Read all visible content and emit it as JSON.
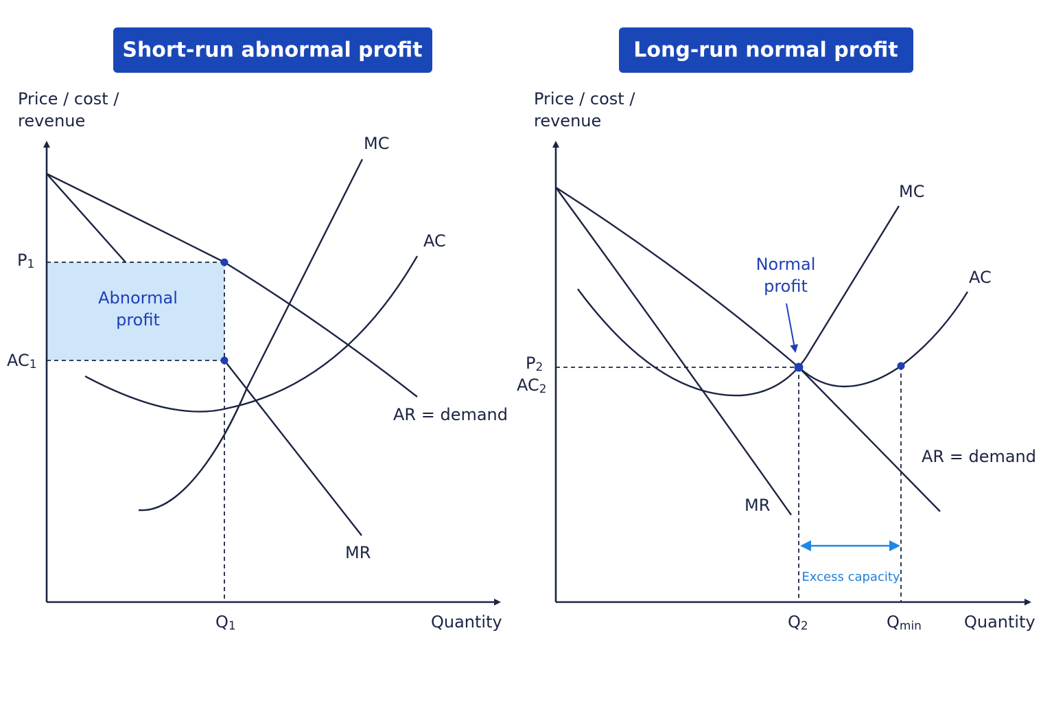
{
  "panels": [
    {
      "title": "Short-run abnormal profit",
      "y_axis_label": [
        "Price / cost /",
        "revenue"
      ],
      "x_axis_label": "Quantity",
      "price_label": {
        "main": "P",
        "sub": "1"
      },
      "cost_label": {
        "main": "AC",
        "sub": "1"
      },
      "quantity_label": {
        "main": "Q",
        "sub": "1"
      },
      "curve_labels": {
        "mc": "MC",
        "ac": "AC",
        "ar": "AR = demand",
        "mr": "MR"
      },
      "area_label": [
        "Abnormal",
        "profit"
      ]
    },
    {
      "title": "Long-run normal profit",
      "y_axis_label": [
        "Price / cost /",
        "revenue"
      ],
      "x_axis_label": "Quantity",
      "price_label": {
        "main": "P",
        "sub": "2"
      },
      "cost_label": {
        "main": "AC",
        "sub": "2"
      },
      "quantity_label": {
        "main": "Q",
        "sub": "2"
      },
      "qmin_label": {
        "main": "Q",
        "sub": "min"
      },
      "curve_labels": {
        "mc": "MC",
        "ac": "AC",
        "ar": "AR = demand",
        "mr": "MR"
      },
      "annotation": [
        "Normal",
        "profit"
      ],
      "excess_capacity": "Excess capacity"
    }
  ]
}
